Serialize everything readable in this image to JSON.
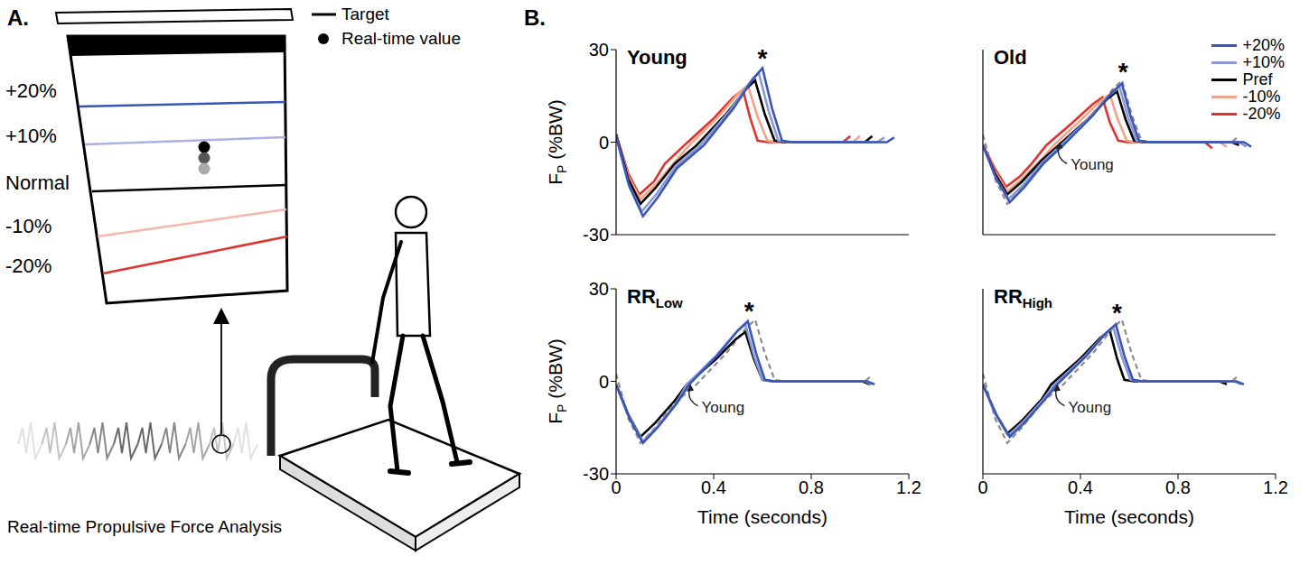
{
  "panel_a": {
    "letter": "A.",
    "legend": [
      {
        "label": "Target",
        "marker": "line"
      },
      {
        "label": "Real-time value",
        "marker": "dot"
      }
    ],
    "targets": [
      {
        "label": "+20%",
        "color": "#3a55b4"
      },
      {
        "label": "+10%",
        "color": "#aab3e0"
      },
      {
        "label": "Normal",
        "color": "#000000"
      },
      {
        "label": "-10%",
        "color": "#f5b8a8"
      },
      {
        "label": "-20%",
        "color": "#e0322c"
      }
    ],
    "caption": "Real-time Propulsive Force Analysis"
  },
  "panel_b_letter": "B.",
  "chart_data": [
    {
      "type": "line",
      "title": "Young",
      "ylabel": "FP (%BW)",
      "xlim": [
        0,
        1.2
      ],
      "xticks": [
        0,
        0.4,
        0.8,
        1.2
      ],
      "ylim": [
        -30,
        30
      ],
      "yticks": [
        -30,
        0,
        30
      ],
      "tick_labels": "y",
      "series": [
        {
          "name": "+20%",
          "color": "#3a55b4",
          "x": [
            0,
            0.055,
            0.11,
            0.17,
            0.25,
            0.36,
            0.48,
            0.56,
            0.6,
            0.64,
            0.68,
            0.72,
            1.11,
            1.14
          ],
          "values": [
            2,
            -14.4,
            -24,
            -18,
            -8.4,
            -1,
            10.8,
            20.4,
            24,
            10.8,
            0.5,
            0,
            0,
            1.5
          ]
        },
        {
          "name": "+10%",
          "color": "#8a9ad8",
          "x": [
            0,
            0.05,
            0.105,
            0.165,
            0.245,
            0.345,
            0.465,
            0.545,
            0.585,
            0.625,
            0.665,
            0.705,
            1.07,
            1.1
          ],
          "values": [
            2,
            -13.5,
            -22.5,
            -16.9,
            -7.9,
            -1,
            10.1,
            19.1,
            22.5,
            10.1,
            0.5,
            0,
            0,
            1.5
          ]
        },
        {
          "name": "Pref",
          "color": "#000000",
          "x": [
            0,
            0.05,
            0.1,
            0.16,
            0.24,
            0.33,
            0.45,
            0.53,
            0.57,
            0.61,
            0.65,
            0.69,
            1.02,
            1.05
          ],
          "values": [
            2.5,
            -12,
            -20,
            -15,
            -7,
            -1,
            9,
            17,
            20,
            9,
            0.5,
            0,
            0,
            2
          ]
        },
        {
          "name": "-10%",
          "color": "#f4a38a",
          "x": [
            0,
            0.05,
            0.1,
            0.16,
            0.24,
            0.3,
            0.42,
            0.5,
            0.54,
            0.58,
            0.62,
            0.66,
            0.97,
            1.0
          ],
          "values": [
            2.5,
            -11.1,
            -18.5,
            -13.9,
            -6.5,
            -1,
            8.3,
            15.7,
            18.5,
            8.3,
            0.5,
            0,
            0,
            2
          ]
        },
        {
          "name": "-20%",
          "color": "#e0322c",
          "x": [
            0,
            0.05,
            0.095,
            0.155,
            0.2,
            0.28,
            0.4,
            0.48,
            0.52,
            0.55,
            0.58,
            0.62,
            0.93,
            0.96
          ],
          "values": [
            2.5,
            -10.2,
            -17,
            -12.8,
            -7,
            -1,
            7.7,
            14.5,
            17,
            7.7,
            0.5,
            0,
            0,
            2
          ]
        }
      ],
      "annotations": [
        {
          "text": "*",
          "x": 0.6,
          "y": 27.5
        }
      ]
    },
    {
      "type": "line",
      "title": "Old",
      "xlim": [
        0,
        1.2
      ],
      "xticks": [
        0,
        0.4,
        0.8,
        1.2
      ],
      "ylim": [
        -30,
        30
      ],
      "yticks": [
        -30,
        0,
        30
      ],
      "tick_labels": false,
      "legend": "upper right",
      "series": [
        {
          "name": "+20%",
          "color": "#3a55b4",
          "x": [
            0,
            0.055,
            0.11,
            0.17,
            0.25,
            0.33,
            0.45,
            0.53,
            0.57,
            0.605,
            0.64,
            0.68,
            1.07,
            1.1
          ],
          "values": [
            -1,
            -11.7,
            -19.5,
            -14.6,
            -6.8,
            -1,
            8.6,
            16.2,
            19,
            8.6,
            0.5,
            0,
            0,
            -1.5
          ]
        },
        {
          "name": "+10%",
          "color": "#8a9ad8",
          "x": [
            0,
            0.05,
            0.105,
            0.165,
            0.245,
            0.32,
            0.44,
            0.52,
            0.56,
            0.595,
            0.63,
            0.67,
            1.05,
            1.08
          ],
          "values": [
            -1,
            -11.1,
            -18.5,
            -13.9,
            -6.5,
            -1,
            8.1,
            15.3,
            18,
            8.1,
            0.5,
            0,
            0,
            -1.5
          ]
        },
        {
          "name": "Pref",
          "color": "#000000",
          "x": [
            0,
            0.05,
            0.1,
            0.16,
            0.24,
            0.31,
            0.43,
            0.51,
            0.55,
            0.585,
            0.62,
            0.66,
            1.02,
            1.05
          ],
          "values": [
            -1,
            -10.2,
            -17,
            -12.8,
            -6,
            -1,
            7.4,
            14,
            16.5,
            7.4,
            0.5,
            0,
            0,
            -1
          ]
        },
        {
          "name": "-10%",
          "color": "#f4a38a",
          "x": [
            0,
            0.05,
            0.1,
            0.16,
            0.24,
            0.29,
            0.4,
            0.48,
            0.52,
            0.555,
            0.59,
            0.63,
            0.97,
            1.0
          ],
          "values": [
            -1,
            -9.6,
            -16,
            -12,
            -5.6,
            -1,
            7,
            13.2,
            15.5,
            7,
            0.5,
            0,
            0,
            -1.5
          ]
        },
        {
          "name": "-20%",
          "color": "#e0322c",
          "x": [
            0,
            0.05,
            0.095,
            0.155,
            0.2,
            0.26,
            0.37,
            0.45,
            0.49,
            0.52,
            0.555,
            0.59,
            0.91,
            0.94
          ],
          "values": [
            -1,
            -8.7,
            -14.5,
            -10.9,
            -7,
            -1,
            6.5,
            12.3,
            14.5,
            6.5,
            0.5,
            0,
            0,
            -2
          ]
        }
      ],
      "reference_series": {
        "color": "#8c8c8c",
        "line_style": "dashed",
        "x": [
          0,
          0.05,
          0.1,
          0.16,
          0.24,
          0.33,
          0.45,
          0.53,
          0.57,
          0.61,
          0.65,
          0.69,
          1.02,
          1.05
        ],
        "values": [
          2.5,
          -12,
          -20,
          -15,
          -7,
          -1,
          9,
          17,
          20,
          9,
          0.5,
          0,
          0,
          2
        ],
        "label": {
          "text": "Young",
          "x": 0.36,
          "y": -9
        }
      },
      "annotations": [
        {
          "text": "*",
          "x": 0.575,
          "y": 23
        }
      ]
    },
    {
      "type": "line",
      "title": "RRLow",
      "ylabel": "FP (%BW)",
      "xlabel": "Time (seconds)",
      "xlim": [
        0,
        1.2
      ],
      "xticks": [
        0,
        0.4,
        0.8,
        1.2
      ],
      "ylim": [
        -30,
        30
      ],
      "yticks": [
        -30,
        0,
        30
      ],
      "tick_labels": true,
      "series": [
        {
          "name": "+20%",
          "color": "#3a55b4",
          "x": [
            0,
            0.055,
            0.11,
            0.17,
            0.25,
            0.3,
            0.42,
            0.5,
            0.54,
            0.575,
            0.61,
            0.65,
            1.03,
            1.06
          ],
          "values": [
            -1,
            -12,
            -20,
            -15,
            -7,
            -1,
            8.8,
            16.6,
            19.5,
            8.8,
            0.5,
            0,
            0,
            -1
          ]
        },
        {
          "name": "+10%",
          "color": "#8a9ad8",
          "x": [
            0,
            0.055,
            0.11,
            0.17,
            0.25,
            0.29,
            0.41,
            0.49,
            0.53,
            0.565,
            0.6,
            0.64,
            1.02,
            1.05
          ],
          "values": [
            -1,
            -11.7,
            -19.5,
            -14.6,
            -6.8,
            -1,
            8.3,
            15.7,
            18.5,
            8.3,
            0.5,
            0,
            0,
            -1
          ]
        },
        {
          "name": "Pref",
          "color": "#000000",
          "x": [
            0,
            0.05,
            0.1,
            0.16,
            0.24,
            0.29,
            0.41,
            0.49,
            0.53,
            0.565,
            0.6,
            0.64,
            1.01,
            1.04
          ],
          "values": [
            -1,
            -10.8,
            -18,
            -13.5,
            -6.3,
            -1,
            7.2,
            13.6,
            16,
            7.2,
            0.5,
            0,
            0,
            -1
          ]
        }
      ],
      "reference_series": {
        "color": "#8c8c8c",
        "line_style": "dashed",
        "x": [
          0,
          0.05,
          0.1,
          0.16,
          0.24,
          0.33,
          0.45,
          0.53,
          0.57,
          0.61,
          0.65,
          0.69,
          1.02,
          1.05
        ],
        "values": [
          2.5,
          -12,
          -20,
          -15,
          -7,
          -1,
          9,
          17,
          20,
          9,
          0.5,
          0,
          0,
          2
        ],
        "label": {
          "text": "Young",
          "x": 0.35,
          "y": -10
        }
      },
      "annotations": [
        {
          "text": "*",
          "x": 0.545,
          "y": 23
        }
      ]
    },
    {
      "type": "line",
      "title": "RRHigh",
      "xlabel": "Time (seconds)",
      "xlim": [
        0,
        1.2
      ],
      "xticks": [
        0,
        0.4,
        0.8,
        1.2
      ],
      "ylim": [
        -30,
        30
      ],
      "yticks": [
        -30,
        0,
        30
      ],
      "tick_labels": "x",
      "series": [
        {
          "name": "+20%",
          "color": "#3a55b4",
          "x": [
            0,
            0.055,
            0.11,
            0.17,
            0.25,
            0.305,
            0.425,
            0.505,
            0.545,
            0.58,
            0.615,
            0.655,
            1.04,
            1.07
          ],
          "values": [
            -1,
            -10.8,
            -18,
            -13.5,
            -6.3,
            -1,
            8.3,
            15.7,
            18.5,
            8.3,
            0.5,
            0,
            0,
            -1
          ]
        },
        {
          "name": "+10%",
          "color": "#8a9ad8",
          "x": [
            0,
            0.05,
            0.105,
            0.165,
            0.245,
            0.295,
            0.415,
            0.495,
            0.535,
            0.57,
            0.605,
            0.645,
            1.03,
            1.06
          ],
          "values": [
            -1,
            -10.5,
            -17.5,
            -13.1,
            -6.1,
            -1,
            7.9,
            14.9,
            17.5,
            7.9,
            0.5,
            0,
            0,
            -1
          ]
        },
        {
          "name": "Pref",
          "color": "#000000",
          "x": [
            0,
            0.05,
            0.1,
            0.16,
            0.24,
            0.28,
            0.4,
            0.48,
            0.52,
            0.55,
            0.58,
            0.62,
            0.97,
            1.0
          ],
          "values": [
            -1,
            -10.2,
            -17,
            -12.8,
            -6,
            -1,
            7.4,
            14,
            16.5,
            7.4,
            0.5,
            0,
            0,
            -1
          ]
        }
      ],
      "reference_series": {
        "color": "#8c8c8c",
        "line_style": "dashed",
        "x": [
          0,
          0.05,
          0.1,
          0.16,
          0.24,
          0.33,
          0.45,
          0.53,
          0.57,
          0.61,
          0.65,
          0.69,
          1.02,
          1.05
        ],
        "values": [
          2.5,
          -12,
          -20,
          -15,
          -7,
          -1,
          9,
          17,
          20,
          9,
          0.5,
          0,
          0,
          2
        ],
        "label": {
          "text": "Young",
          "x": 0.35,
          "y": -10
        }
      },
      "annotations": [
        {
          "text": "*",
          "x": 0.55,
          "y": 22.5
        }
      ]
    }
  ]
}
